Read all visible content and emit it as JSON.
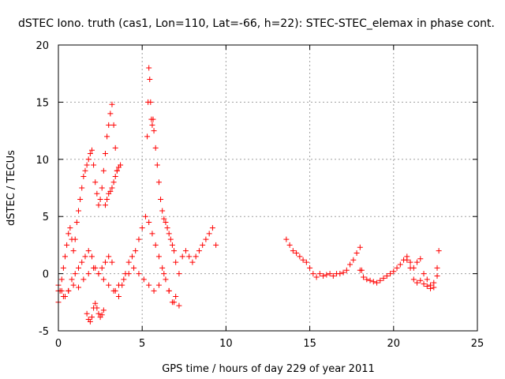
{
  "chart_data": {
    "type": "scatter",
    "title": "dSTEC Iono. truth (cas1, Lon=110, Lat=-66, h=22): STEC-STEC_elemax in phase cont.",
    "xlabel": "GPS time / hours of day 229 of year 2011",
    "ylabel": "dSTEC  / TECUs",
    "xlim": [
      0,
      25
    ],
    "ylim": [
      -5,
      20
    ],
    "xticks": [
      "0",
      "5",
      "10",
      "15",
      "20",
      "25"
    ],
    "yticks": [
      "-5",
      "0",
      "5",
      "10",
      "15",
      "20"
    ],
    "grid": true,
    "marker": "plus",
    "color": "#ff0000",
    "series": [
      {
        "x": [
          0.0,
          0.1,
          0.2,
          0.3,
          0.4,
          0.5,
          0.6,
          0.7,
          0.8,
          0.9,
          1.0,
          1.1,
          1.2,
          1.3,
          1.4,
          1.5,
          1.6,
          1.7,
          1.8,
          1.9,
          2.0,
          2.1,
          2.2,
          2.3,
          2.4,
          2.5,
          2.6,
          2.7,
          2.8,
          2.9,
          3.0,
          3.1,
          3.2,
          3.3,
          3.4,
          3.5
        ],
        "y": [
          -2.5,
          -1.5,
          -0.5,
          0.5,
          1.5,
          2.5,
          3.5,
          4.0,
          3.0,
          2.0,
          3.0,
          4.5,
          5.5,
          6.5,
          7.5,
          8.5,
          9.0,
          9.5,
          10.0,
          10.5,
          10.8,
          9.5,
          8.0,
          7.0,
          6.0,
          6.5,
          7.5,
          9.0,
          10.5,
          12.0,
          13.0,
          14.0,
          14.8,
          13.0,
          11.0,
          9.0
        ]
      },
      {
        "x": [
          1.7,
          1.8,
          1.9,
          2.0,
          2.1,
          2.2,
          2.3,
          2.4,
          2.5,
          2.6,
          2.7,
          2.8,
          2.9,
          3.0,
          3.1,
          3.2,
          3.3,
          3.4,
          3.5,
          3.6,
          3.7
        ],
        "y": [
          -3.5,
          -4.0,
          -4.2,
          -3.8,
          -3.0,
          -2.6,
          -3.0,
          -3.5,
          -3.8,
          -3.6,
          -3.2,
          6.0,
          6.5,
          7.0,
          7.2,
          7.5,
          8.0,
          8.5,
          9.0,
          9.3,
          9.5
        ]
      },
      {
        "x": [
          0.0,
          0.2,
          0.4,
          0.6,
          0.8,
          1.0,
          1.2,
          1.4,
          1.6,
          1.8,
          2.0,
          2.2,
          2.4,
          2.6,
          2.8,
          3.0,
          3.2,
          3.4,
          3.6,
          3.8,
          4.0,
          4.2,
          4.4,
          4.6,
          4.8,
          5.0,
          5.2,
          5.4,
          5.6,
          5.8,
          6.0,
          6.2,
          6.4,
          6.6,
          6.8,
          7.0,
          7.2,
          7.4,
          7.6,
          7.8,
          8.0,
          8.2,
          8.4,
          8.6,
          8.8,
          9.0,
          9.2,
          9.4
        ],
        "y": [
          -1.0,
          -1.5,
          -2.0,
          -1.5,
          -0.5,
          0.0,
          0.5,
          1.0,
          1.5,
          2.0,
          1.5,
          0.5,
          0.0,
          0.5,
          1.0,
          1.5,
          1.0,
          -1.5,
          -2.0,
          -1.0,
          0.0,
          1.0,
          1.5,
          2.0,
          3.0,
          4.0,
          5.0,
          4.5,
          3.5,
          2.5,
          1.5,
          0.5,
          -0.5,
          -1.5,
          -2.5,
          -2.0,
          0.0,
          1.5,
          2.0,
          1.5,
          1.0,
          1.5,
          2.0,
          2.5,
          3.0,
          3.5,
          4.0,
          2.5
        ]
      },
      {
        "x": [
          0.0,
          0.3,
          0.6,
          0.9,
          1.2,
          1.5,
          1.8,
          2.1,
          2.4,
          2.7,
          3.0,
          3.3,
          3.6,
          3.9,
          4.2,
          4.5,
          4.8,
          5.1,
          5.4,
          5.7,
          6.0,
          6.3,
          6.6,
          6.9,
          7.2
        ],
        "y": [
          -1.5,
          -2.0,
          -1.5,
          -1.0,
          -1.2,
          -0.5,
          0.0,
          0.5,
          0.0,
          -0.5,
          -1.0,
          -1.5,
          -1.0,
          -0.5,
          0.0,
          0.5,
          0.0,
          -0.5,
          -1.0,
          -1.5,
          -1.0,
          0.0,
          -1.5,
          -2.5,
          -2.8
        ]
      },
      {
        "x": [
          5.3,
          5.35,
          5.4,
          5.45,
          5.5,
          5.55,
          5.6,
          5.65,
          5.7,
          5.8,
          5.9,
          6.0,
          6.1,
          6.2,
          6.3,
          6.4,
          6.5,
          6.6,
          6.7,
          6.8,
          6.9,
          7.0
        ],
        "y": [
          12.0,
          15.0,
          18.0,
          17.0,
          15.0,
          13.5,
          13.0,
          13.5,
          12.5,
          11.0,
          9.5,
          8.0,
          6.5,
          5.5,
          4.8,
          4.5,
          4.0,
          3.5,
          3.0,
          2.5,
          2.0,
          1.0
        ]
      },
      {
        "x": [
          13.6,
          13.8,
          14.0,
          14.2,
          14.4,
          14.6,
          14.8,
          15.0,
          15.2,
          15.4,
          15.6,
          15.8,
          16.0,
          16.2,
          16.4,
          16.6,
          16.8,
          17.0,
          17.2,
          17.4,
          17.6,
          17.8,
          18.0,
          18.1
        ],
        "y": [
          3.0,
          2.5,
          2.0,
          1.8,
          1.5,
          1.2,
          1.0,
          0.5,
          0.0,
          -0.3,
          0.0,
          -0.2,
          -0.1,
          0.0,
          -0.2,
          0.0,
          0.0,
          0.1,
          0.3,
          0.8,
          1.2,
          1.8,
          2.3,
          0.3
        ]
      },
      {
        "x": [
          18.0,
          18.2,
          18.4,
          18.6,
          18.8,
          19.0,
          19.2,
          19.4,
          19.6,
          19.8,
          20.0,
          20.2,
          20.4,
          20.6,
          20.8,
          21.0,
          21.2,
          21.4,
          21.6,
          21.8,
          22.0,
          22.2,
          22.4,
          22.6,
          22.7
        ],
        "y": [
          0.3,
          -0.3,
          -0.5,
          -0.6,
          -0.7,
          -0.8,
          -0.6,
          -0.4,
          -0.2,
          0.0,
          0.2,
          0.5,
          0.8,
          1.2,
          1.5,
          1.0,
          0.5,
          1.0,
          1.3,
          0.0,
          -0.5,
          -1.0,
          -1.2,
          0.5,
          2.0
        ]
      },
      {
        "x": [
          20.8,
          21.0,
          21.2,
          21.4,
          21.6,
          21.8,
          22.0,
          22.2,
          22.4,
          22.6
        ],
        "y": [
          1.2,
          0.5,
          -0.5,
          -0.8,
          -0.6,
          -0.9,
          -1.1,
          -1.3,
          -0.8,
          -0.2
        ]
      }
    ]
  }
}
